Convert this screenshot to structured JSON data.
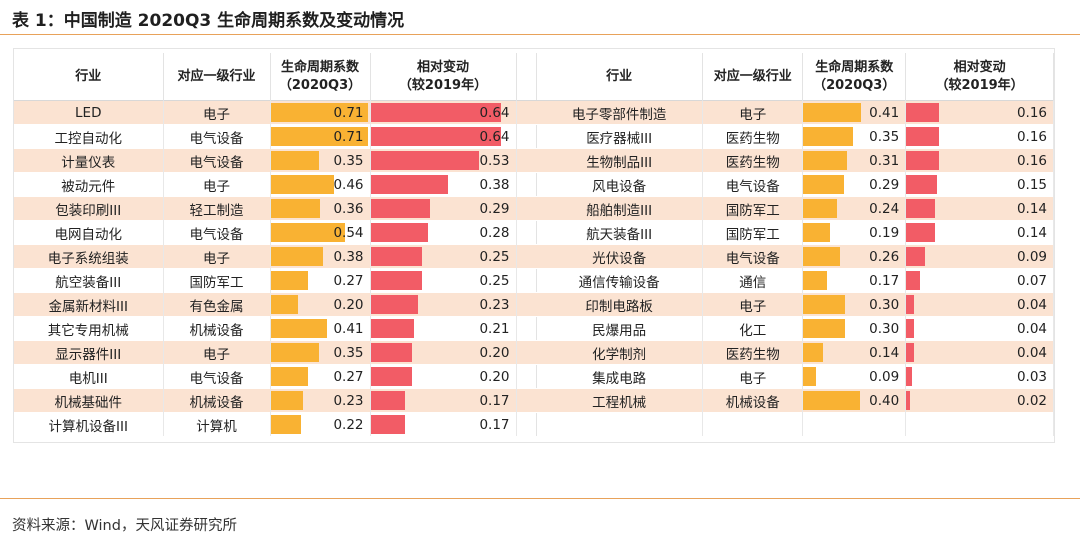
{
  "title": "表 1：中国制造 2020Q3 生命周期系数及变动情况",
  "headers": {
    "industry": "行业",
    "sector": "对应一级行业",
    "coef_line1": "生命周期系数",
    "coef_line2": "（2020Q3）",
    "change_line1": "相对变动",
    "change_line2": "（较2019年）"
  },
  "colors": {
    "coefficient_bar": "#f9b233",
    "change_bar": "#f25c66",
    "row_highlight": "#fbe3d2",
    "accent_line": "#e8a25a"
  },
  "chart_data": [
    {
      "type": "table",
      "columns": [
        "行业",
        "对应一级行业",
        "生命周期系数（2020Q3）",
        "相对变动（较2019年）"
      ],
      "rows": [
        {
          "industry": "LED",
          "sector": "电子",
          "coef": 0.71,
          "coef_text": "0.71",
          "change": 0.64,
          "change_text": "0.64"
        },
        {
          "industry": "工控自动化",
          "sector": "电气设备",
          "coef": 0.71,
          "coef_text": "0.71",
          "change": 0.64,
          "change_text": "0.64"
        },
        {
          "industry": "计量仪表",
          "sector": "电气设备",
          "coef": 0.35,
          "coef_text": "0.35",
          "change": 0.53,
          "change_text": "0.53"
        },
        {
          "industry": "被动元件",
          "sector": "电子",
          "coef": 0.46,
          "coef_text": "0.46",
          "change": 0.38,
          "change_text": "0.38"
        },
        {
          "industry": "包装印刷III",
          "sector": "轻工制造",
          "coef": 0.36,
          "coef_text": "0.36",
          "change": 0.29,
          "change_text": "0.29"
        },
        {
          "industry": "电网自动化",
          "sector": "电气设备",
          "coef": 0.54,
          "coef_text": "0.54",
          "change": 0.28,
          "change_text": "0.28"
        },
        {
          "industry": "电子系统组装",
          "sector": "电子",
          "coef": 0.38,
          "coef_text": "0.38",
          "change": 0.25,
          "change_text": "0.25"
        },
        {
          "industry": "航空装备III",
          "sector": "国防军工",
          "coef": 0.27,
          "coef_text": "0.27",
          "change": 0.25,
          "change_text": "0.25"
        },
        {
          "industry": "金属新材料III",
          "sector": "有色金属",
          "coef": 0.2,
          "coef_text": "0.20",
          "change": 0.23,
          "change_text": "0.23"
        },
        {
          "industry": "其它专用机械",
          "sector": "机械设备",
          "coef": 0.41,
          "coef_text": "0.41",
          "change": 0.21,
          "change_text": "0.21"
        },
        {
          "industry": "显示器件III",
          "sector": "电子",
          "coef": 0.35,
          "coef_text": "0.35",
          "change": 0.2,
          "change_text": "0.20"
        },
        {
          "industry": "电机III",
          "sector": "电气设备",
          "coef": 0.27,
          "coef_text": "0.27",
          "change": 0.2,
          "change_text": "0.20"
        },
        {
          "industry": "机械基础件",
          "sector": "机械设备",
          "coef": 0.23,
          "coef_text": "0.23",
          "change": 0.17,
          "change_text": "0.17"
        },
        {
          "industry": "计算机设备III",
          "sector": "计算机",
          "coef": 0.22,
          "coef_text": "0.22",
          "change": 0.17,
          "change_text": "0.17"
        }
      ]
    },
    {
      "type": "table",
      "columns": [
        "行业",
        "对应一级行业",
        "生命周期系数（2020Q3）",
        "相对变动（较2019年）"
      ],
      "rows": [
        {
          "industry": "电子零部件制造",
          "sector": "电子",
          "coef": 0.41,
          "coef_text": "0.41",
          "change": 0.16,
          "change_text": "0.16"
        },
        {
          "industry": "医疗器械III",
          "sector": "医药生物",
          "coef": 0.35,
          "coef_text": "0.35",
          "change": 0.16,
          "change_text": "0.16"
        },
        {
          "industry": "生物制品III",
          "sector": "医药生物",
          "coef": 0.31,
          "coef_text": "0.31",
          "change": 0.16,
          "change_text": "0.16"
        },
        {
          "industry": "风电设备",
          "sector": "电气设备",
          "coef": 0.29,
          "coef_text": "0.29",
          "change": 0.15,
          "change_text": "0.15"
        },
        {
          "industry": "船舶制造III",
          "sector": "国防军工",
          "coef": 0.24,
          "coef_text": "0.24",
          "change": 0.14,
          "change_text": "0.14"
        },
        {
          "industry": "航天装备III",
          "sector": "国防军工",
          "coef": 0.19,
          "coef_text": "0.19",
          "change": 0.14,
          "change_text": "0.14"
        },
        {
          "industry": "光伏设备",
          "sector": "电气设备",
          "coef": 0.26,
          "coef_text": "0.26",
          "change": 0.09,
          "change_text": "0.09"
        },
        {
          "industry": "通信传输设备",
          "sector": "通信",
          "coef": 0.17,
          "coef_text": "0.17",
          "change": 0.07,
          "change_text": "0.07"
        },
        {
          "industry": "印制电路板",
          "sector": "电子",
          "coef": 0.3,
          "coef_text": "0.30",
          "change": 0.04,
          "change_text": "0.04"
        },
        {
          "industry": "民爆用品",
          "sector": "化工",
          "coef": 0.3,
          "coef_text": "0.30",
          "change": 0.04,
          "change_text": "0.04"
        },
        {
          "industry": "化学制剂",
          "sector": "医药生物",
          "coef": 0.14,
          "coef_text": "0.14",
          "change": 0.04,
          "change_text": "0.04"
        },
        {
          "industry": "集成电路",
          "sector": "电子",
          "coef": 0.09,
          "coef_text": "0.09",
          "change": 0.03,
          "change_text": "0.03"
        },
        {
          "industry": "工程机械",
          "sector": "机械设备",
          "coef": 0.4,
          "coef_text": "0.40",
          "change": 0.02,
          "change_text": "0.02"
        },
        {
          "industry": "",
          "sector": "",
          "coef": null,
          "coef_text": "",
          "change": null,
          "change_text": ""
        }
      ]
    }
  ],
  "source": "资料来源：Wind，天风证券研究所"
}
